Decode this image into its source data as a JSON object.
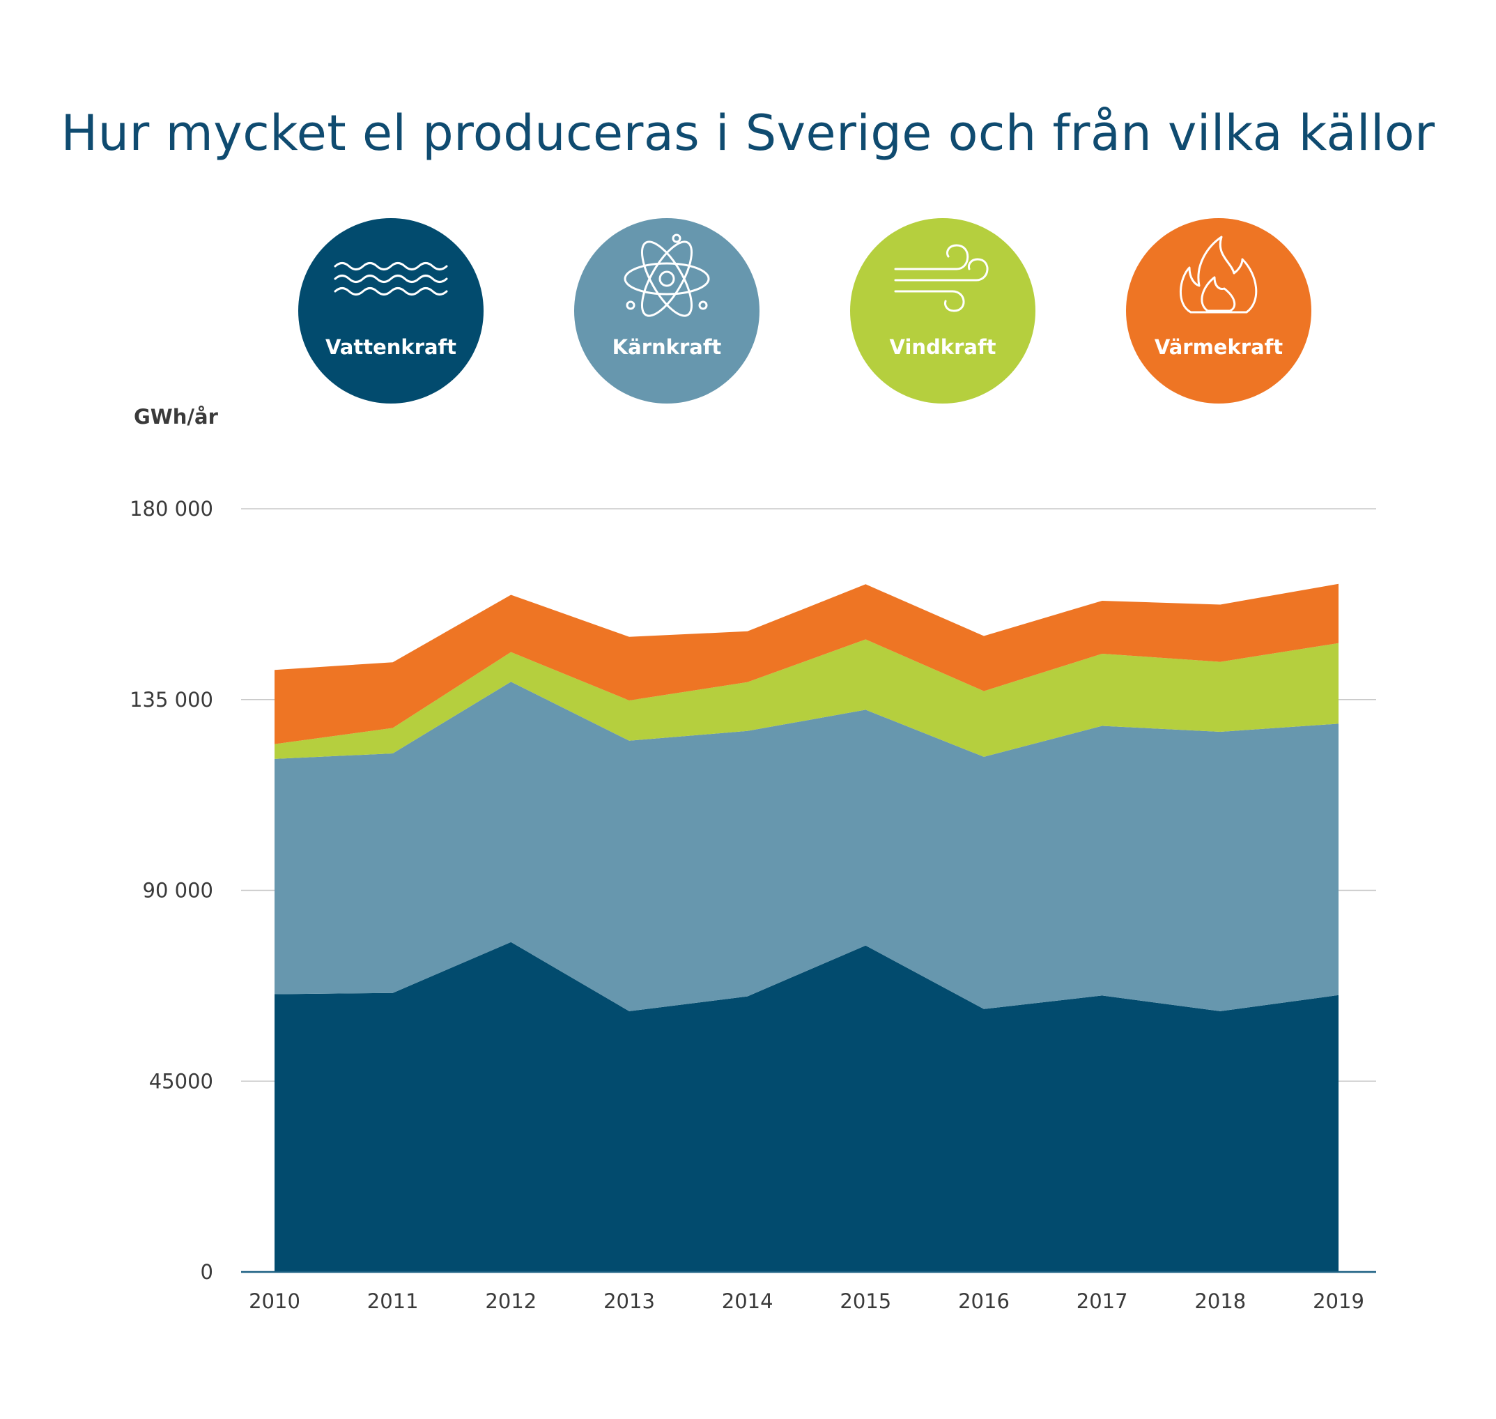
{
  "chart_data": {
    "type": "area",
    "stacked": true,
    "title": "Hur mycket el produceras i Sverige och från vilka källor",
    "ylabel": "GWh/år",
    "xlabel": "",
    "ylim": [
      0,
      180000
    ],
    "y_ticks": [
      {
        "value": 0,
        "label": "0"
      },
      {
        "value": 45000,
        "label": "45000"
      },
      {
        "value": 90000,
        "label": "90 000"
      },
      {
        "value": 135000,
        "label": "135 000"
      },
      {
        "value": 180000,
        "label": "180 000"
      }
    ],
    "categories": [
      "2010",
      "2011",
      "2012",
      "2013",
      "2014",
      "2015",
      "2016",
      "2017",
      "2018",
      "2019"
    ],
    "grid": true,
    "legend_position": "top",
    "series": [
      {
        "name": "Vattenkraft",
        "color": "#024b6e",
        "icon": "waves-icon",
        "values": [
          65500,
          65800,
          77800,
          61500,
          65000,
          77000,
          62000,
          65200,
          61500,
          65300
        ]
      },
      {
        "name": "Kärnkraft",
        "color": "#6797ae",
        "icon": "atom-icon",
        "values": [
          55500,
          56500,
          61400,
          63800,
          62600,
          55600,
          59500,
          63600,
          65900,
          64000
        ]
      },
      {
        "name": "Vindkraft",
        "color": "#b5cf3e",
        "icon": "wind-icon",
        "values": [
          3500,
          6000,
          7000,
          9500,
          11500,
          16600,
          15500,
          17000,
          16500,
          19000
        ]
      },
      {
        "name": "Värmekraft",
        "color": "#ee7524",
        "icon": "flame-icon",
        "values": [
          17500,
          15500,
          13500,
          15000,
          12000,
          13000,
          13000,
          12500,
          13500,
          14000
        ]
      }
    ]
  }
}
